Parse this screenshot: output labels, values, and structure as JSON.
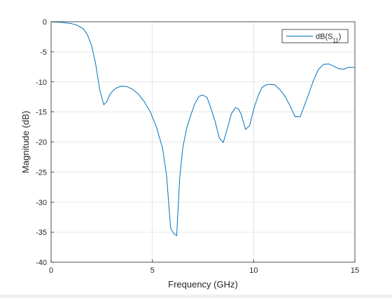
{
  "chart_data": {
    "type": "line",
    "title": "",
    "xlabel": "Frequency (GHz)",
    "ylabel": "Magnitude (dB)",
    "xlim": [
      0,
      15
    ],
    "ylim": [
      -40,
      0
    ],
    "xticks": [
      "0",
      "5",
      "10",
      "15"
    ],
    "yticks": [
      "0",
      "-5",
      "-10",
      "-15",
      "-20",
      "-25",
      "-30",
      "-35",
      "-40"
    ],
    "grid": true,
    "legend_position": "top-right",
    "legend": {
      "base": "dB(S",
      "sub": "11",
      "close": ")"
    },
    "line_color": "#0072bd",
    "series": [
      {
        "name": "dB(S11)",
        "x": [
          0,
          0.5,
          1.0,
          1.3,
          1.6,
          1.8,
          2.0,
          2.2,
          2.4,
          2.6,
          2.75,
          2.9,
          3.1,
          3.3,
          3.5,
          3.75,
          4.0,
          4.3,
          4.6,
          4.9,
          5.2,
          5.5,
          5.7,
          5.9,
          6.05,
          6.2,
          6.35,
          6.5,
          6.7,
          6.9,
          7.1,
          7.3,
          7.5,
          7.7,
          7.9,
          8.1,
          8.3,
          8.5,
          8.75,
          8.9,
          9.1,
          9.25,
          9.4,
          9.6,
          9.8,
          10.05,
          10.25,
          10.4,
          10.6,
          10.8,
          11.05,
          11.3,
          11.55,
          11.8,
          12.05,
          12.3,
          12.5,
          12.7,
          12.95,
          13.2,
          13.45,
          13.7,
          13.95,
          14.2,
          14.45,
          14.65,
          14.85,
          15.0
        ],
        "values": [
          0,
          -0.1,
          -0.3,
          -0.6,
          -1.2,
          -2.2,
          -4.0,
          -7.0,
          -11.3,
          -13.8,
          -13.3,
          -12.1,
          -11.3,
          -10.9,
          -10.7,
          -10.8,
          -11.2,
          -12.0,
          -13.3,
          -15.0,
          -17.5,
          -21.0,
          -25.5,
          -34.3,
          -35.2,
          -35.6,
          -26.0,
          -21.0,
          -17.6,
          -15.5,
          -13.6,
          -12.4,
          -12.2,
          -12.6,
          -14.5,
          -16.6,
          -19.3,
          -20.1,
          -17.2,
          -15.3,
          -14.3,
          -14.5,
          -15.5,
          -17.9,
          -17.3,
          -14.0,
          -12.1,
          -11.0,
          -10.5,
          -10.4,
          -10.5,
          -11.3,
          -12.4,
          -14.0,
          -15.8,
          -15.8,
          -14.0,
          -12.2,
          -9.8,
          -7.9,
          -7.1,
          -7.0,
          -7.4,
          -7.8,
          -7.9,
          -7.6,
          -7.6,
          -7.6
        ]
      }
    ]
  }
}
